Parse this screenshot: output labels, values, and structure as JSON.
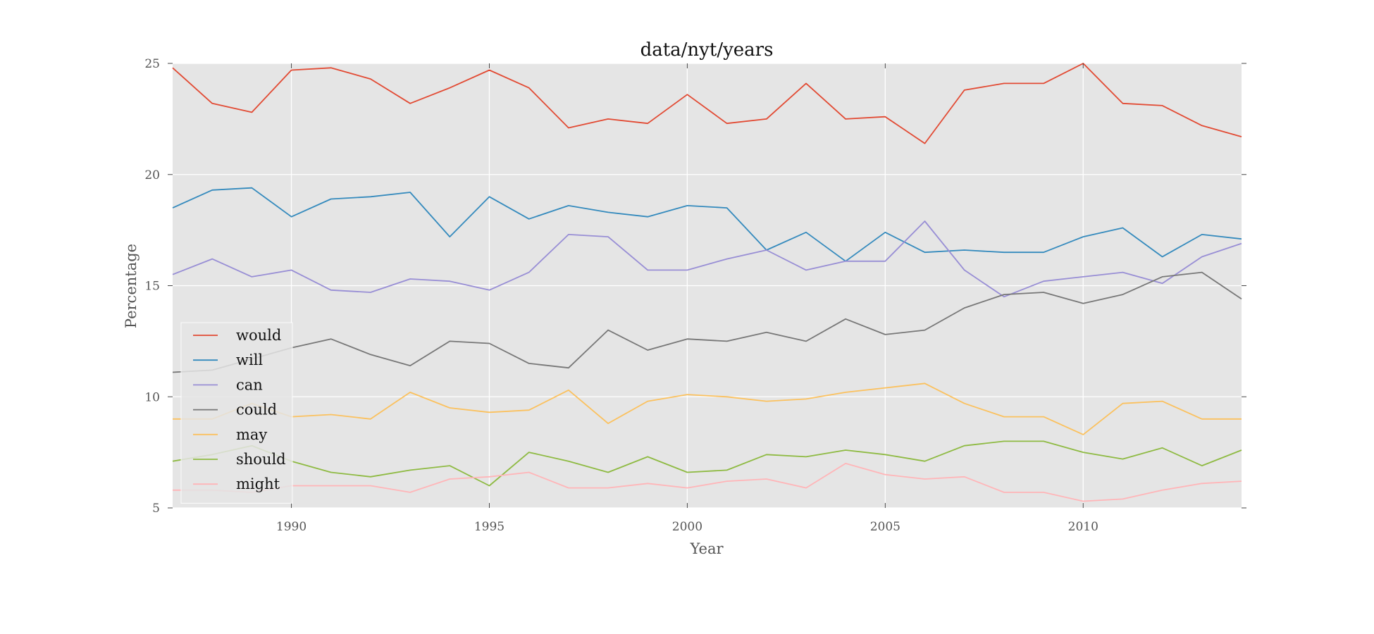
{
  "chart_data": {
    "type": "line",
    "title": "data/nyt/years",
    "xlabel": "Year",
    "ylabel": "Percentage",
    "xlim": [
      1987,
      2014
    ],
    "ylim": [
      5,
      25
    ],
    "xticks": [
      1990,
      1995,
      2000,
      2005,
      2010
    ],
    "yticks": [
      5,
      10,
      15,
      20,
      25
    ],
    "grid": true,
    "legend_position": "lower-left",
    "x": [
      1987,
      1988,
      1989,
      1990,
      1991,
      1992,
      1993,
      1994,
      1995,
      1996,
      1997,
      1998,
      1999,
      2000,
      2001,
      2002,
      2003,
      2004,
      2005,
      2006,
      2007,
      2008,
      2009,
      2010,
      2011,
      2012,
      2013,
      2014
    ],
    "series": [
      {
        "name": "would",
        "color": "#e24a33",
        "values": [
          24.8,
          23.2,
          22.8,
          24.7,
          24.8,
          24.3,
          23.2,
          23.9,
          24.7,
          23.9,
          22.1,
          22.5,
          22.3,
          23.6,
          22.3,
          22.5,
          24.1,
          22.5,
          22.6,
          21.4,
          23.8,
          24.1,
          24.1,
          25.0,
          23.2,
          23.1,
          22.2,
          21.7
        ]
      },
      {
        "name": "will",
        "color": "#348abd",
        "values": [
          18.5,
          19.3,
          19.4,
          18.1,
          18.9,
          19.0,
          19.2,
          17.2,
          19.0,
          18.0,
          18.6,
          18.3,
          18.1,
          18.6,
          18.5,
          16.6,
          17.4,
          16.1,
          17.4,
          16.5,
          16.6,
          16.5,
          16.5,
          17.2,
          17.6,
          16.3,
          17.3,
          17.1
        ]
      },
      {
        "name": "can",
        "color": "#988ed5",
        "values": [
          15.5,
          16.2,
          15.4,
          15.7,
          14.8,
          14.7,
          15.3,
          15.2,
          14.8,
          15.6,
          17.3,
          17.2,
          15.7,
          15.7,
          16.2,
          16.6,
          15.7,
          16.1,
          16.1,
          17.9,
          15.7,
          14.5,
          15.2,
          15.4,
          15.6,
          15.1,
          16.3,
          16.9
        ]
      },
      {
        "name": "could",
        "color": "#777777",
        "values": [
          11.1,
          11.2,
          11.7,
          12.2,
          12.6,
          11.9,
          11.4,
          12.5,
          12.4,
          11.5,
          11.3,
          13.0,
          12.1,
          12.6,
          12.5,
          12.9,
          12.5,
          13.5,
          12.8,
          13.0,
          14.0,
          14.6,
          14.7,
          14.2,
          14.6,
          15.4,
          15.6,
          14.4
        ]
      },
      {
        "name": "may",
        "color": "#fbc15e",
        "values": [
          9.0,
          9.0,
          9.7,
          9.1,
          9.2,
          9.0,
          10.2,
          9.5,
          9.3,
          9.4,
          10.3,
          8.8,
          9.8,
          10.1,
          10.0,
          9.8,
          9.9,
          10.2,
          10.4,
          10.6,
          9.7,
          9.1,
          9.1,
          8.3,
          9.7,
          9.8,
          9.0,
          9.0
        ]
      },
      {
        "name": "should",
        "color": "#8eba42",
        "values": [
          7.1,
          7.4,
          7.8,
          7.1,
          6.6,
          6.4,
          6.7,
          6.9,
          6.0,
          7.5,
          7.1,
          6.6,
          7.3,
          6.6,
          6.7,
          7.4,
          7.3,
          7.6,
          7.4,
          7.1,
          7.8,
          8.0,
          8.0,
          7.5,
          7.2,
          7.7,
          6.9,
          7.6
        ]
      },
      {
        "name": "might",
        "color": "#ffb5b8",
        "values": [
          5.8,
          5.8,
          5.7,
          6.0,
          6.0,
          6.0,
          5.7,
          6.3,
          6.4,
          6.6,
          5.9,
          5.9,
          6.1,
          5.9,
          6.2,
          6.3,
          5.9,
          7.0,
          6.5,
          6.3,
          6.4,
          5.7,
          5.7,
          5.3,
          5.4,
          5.8,
          6.1,
          6.2
        ]
      }
    ]
  }
}
